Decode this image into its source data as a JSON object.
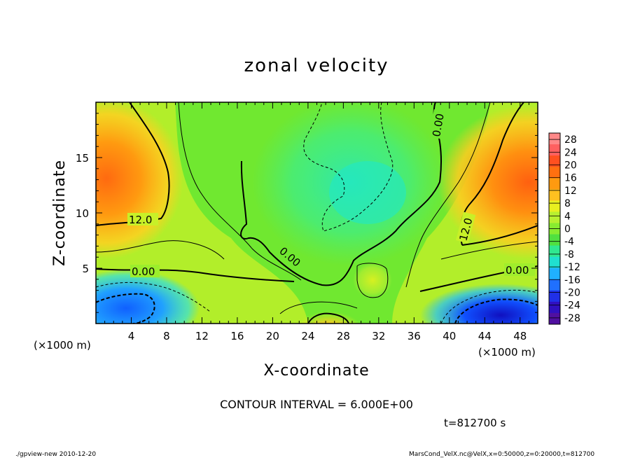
{
  "chart_data": {
    "type": "heatmap",
    "title": "zonal velocity",
    "xlabel": "X-coordinate",
    "ylabel": "Z-coordinate",
    "x_unit": "(×1000 m)",
    "y_unit": "(×1000 m)",
    "xlim": [
      0,
      50
    ],
    "ylim": [
      0,
      20
    ],
    "x_ticks": [
      4,
      8,
      12,
      16,
      20,
      24,
      28,
      32,
      36,
      40,
      44,
      48
    ],
    "y_ticks": [
      5,
      10,
      15
    ],
    "colorbar": {
      "labels": [
        28,
        24,
        20,
        16,
        12,
        8,
        4,
        0,
        -4,
        -8,
        -12,
        -16,
        -20,
        -24,
        -28
      ],
      "range": [
        -30,
        30
      ]
    },
    "contour_interval": "CONTOUR INTERVAL = 6.000E+00",
    "contour_labels": [
      "12.0",
      "12.0",
      "0.00",
      "0.00",
      "0.00",
      "0.00"
    ],
    "time": "t=812700 s",
    "notes": {
      "left": "./gpview-new   2010-12-20",
      "right": "MarsCond_VelX.nc@VelX,x=0:50000,z=0:20000,t=812700"
    }
  }
}
